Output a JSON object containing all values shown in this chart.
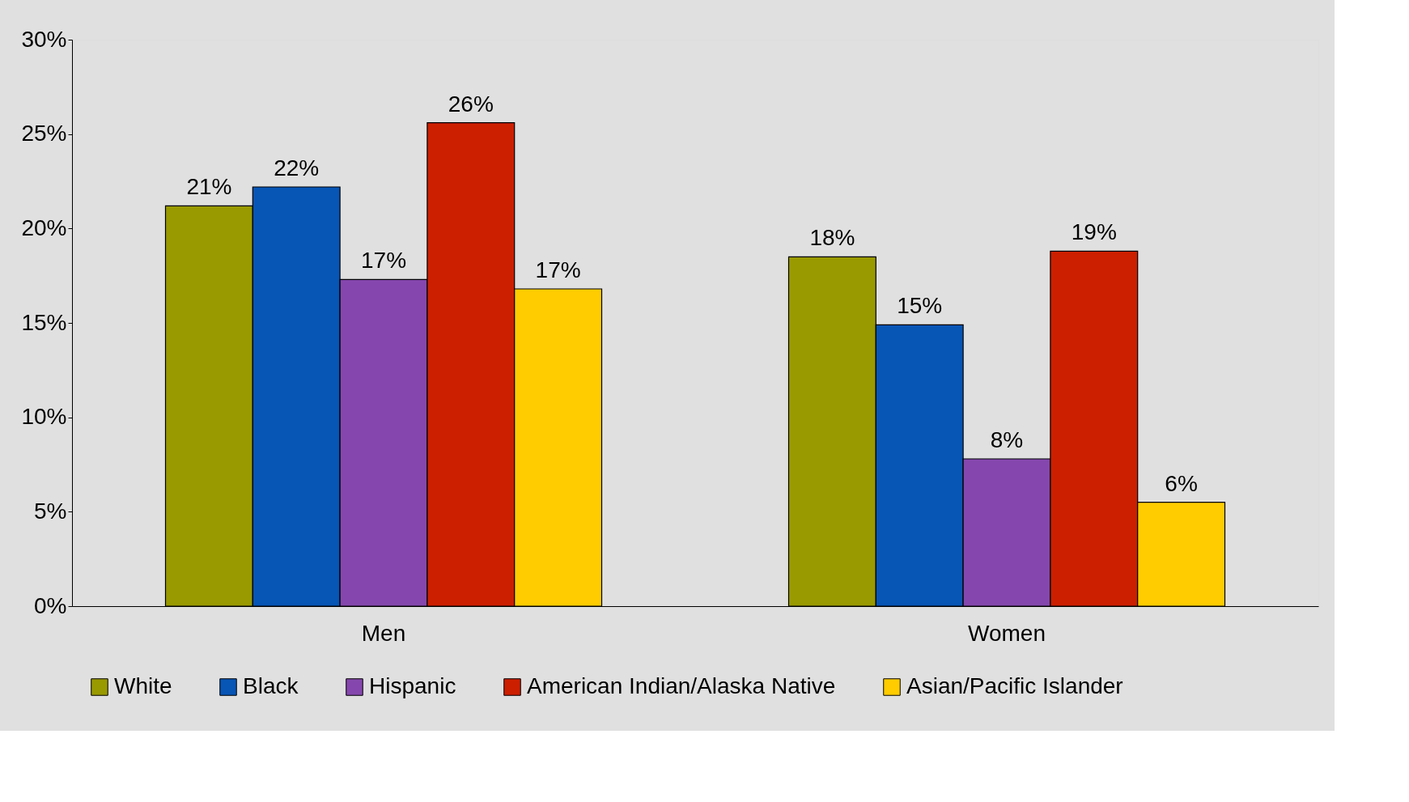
{
  "chart_data": {
    "type": "bar",
    "categories": [
      "Men",
      "Women"
    ],
    "series": [
      {
        "name": "White",
        "color": "#999900",
        "values": [
          21.2,
          18.5
        ],
        "value_labels": [
          "21%",
          "18%"
        ]
      },
      {
        "name": "Black",
        "color": "#0755b5",
        "values": [
          22.2,
          14.9
        ],
        "value_labels": [
          "22%",
          "15%"
        ]
      },
      {
        "name": "Hispanic",
        "color": "#8547ad",
        "values": [
          17.3,
          7.8
        ],
        "value_labels": [
          "17%",
          "8%"
        ]
      },
      {
        "name": "American Indian/Alaska Native",
        "color": "#cc1f00",
        "values": [
          25.6,
          18.8
        ],
        "value_labels": [
          "26%",
          "19%"
        ]
      },
      {
        "name": "Asian/Pacific Islander",
        "color": "#ffcc00",
        "values": [
          16.8,
          5.5
        ],
        "value_labels": [
          "17%",
          "6%"
        ]
      }
    ],
    "ylim": [
      0,
      30
    ],
    "yticks": [
      {
        "value": 0,
        "label": "0%"
      },
      {
        "value": 5,
        "label": "5%"
      },
      {
        "value": 10,
        "label": "10%"
      },
      {
        "value": 15,
        "label": "15%"
      },
      {
        "value": 20,
        "label": "20%"
      },
      {
        "value": 25,
        "label": "25%"
      },
      {
        "value": 30,
        "label": "30%"
      }
    ],
    "legend": "bottom"
  }
}
